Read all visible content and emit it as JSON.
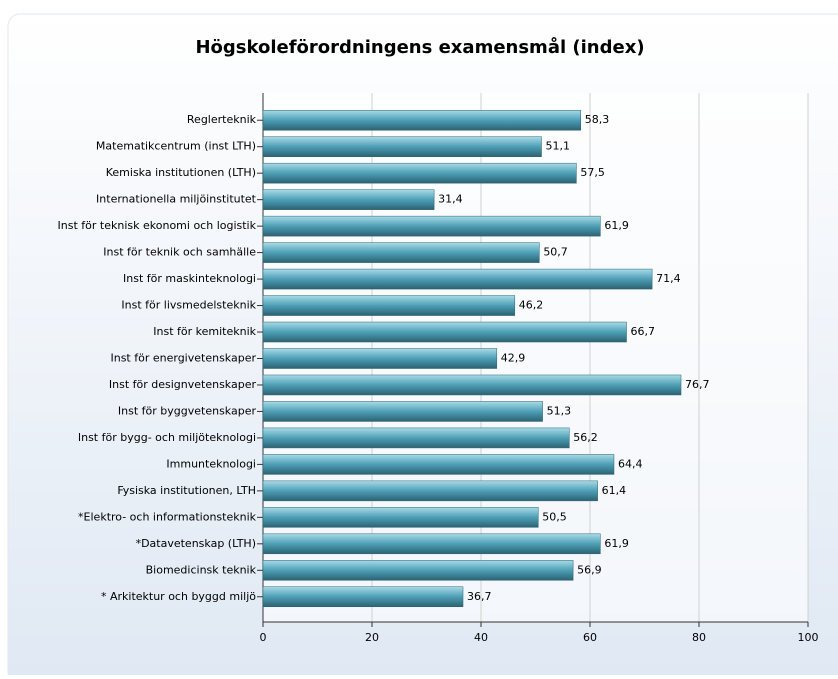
{
  "chart_data": {
    "type": "bar",
    "orientation": "horizontal",
    "title": "Högskoleförordningens examensmål (index)",
    "categories": [
      "Reglerteknik",
      "Matematikcentrum (inst LTH)",
      "Kemiska institutionen (LTH)",
      "Internationella miljöinstitutet",
      "Inst för teknisk ekonomi och logistik",
      "Inst för teknik och samhälle",
      "Inst för maskinteknologi",
      "Inst för livsmedelsteknik",
      "Inst för kemiteknik",
      "Inst för energivetenskaper",
      "Inst för designvetenskaper",
      "Inst för byggvetenskaper",
      "Inst för bygg- och miljöteknologi",
      "Immunteknologi",
      "Fysiska institutionen, LTH",
      "*Elektro- och informationsteknik",
      "*Datavetenskap (LTH)",
      "Biomedicinsk teknik",
      "* Arkitektur och byggd miljö"
    ],
    "values": [
      58.3,
      51.1,
      57.5,
      31.4,
      61.9,
      50.7,
      71.4,
      46.2,
      66.7,
      42.9,
      76.7,
      51.3,
      56.2,
      64.4,
      61.4,
      50.5,
      61.9,
      56.9,
      36.7
    ],
    "value_labels": [
      "58,3",
      "51,1",
      "57,5",
      "31,4",
      "61,9",
      "50,7",
      "71,4",
      "46,2",
      "66,7",
      "42,9",
      "76,7",
      "51,3",
      "56,2",
      "64,4",
      "61,4",
      "50,5",
      "61,9",
      "56,9",
      "36,7"
    ],
    "color": "#4d9fb6",
    "xlim": [
      0,
      100
    ],
    "xticks": [
      0,
      20,
      40,
      60,
      80,
      100
    ],
    "grid": true
  }
}
